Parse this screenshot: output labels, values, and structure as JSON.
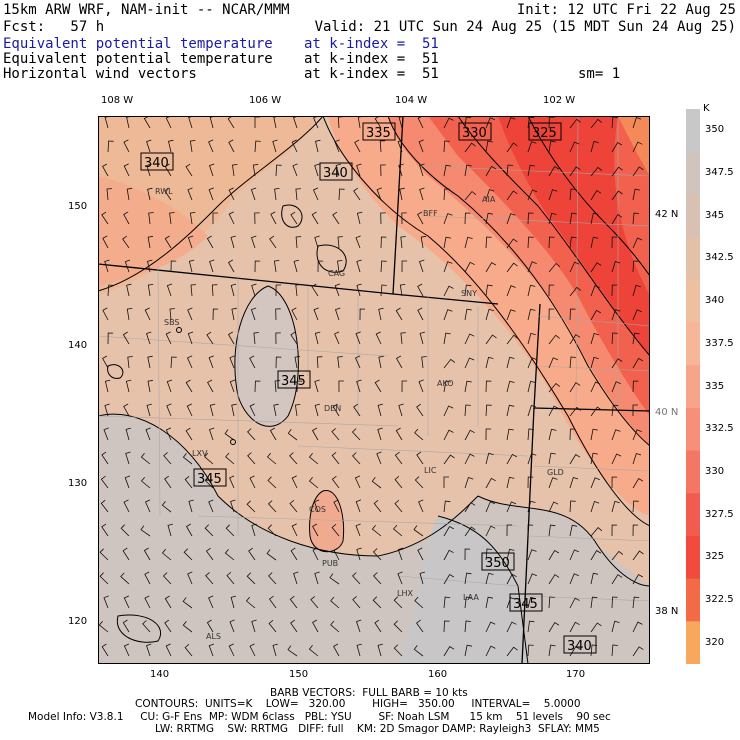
{
  "header": {
    "line1_left": "15km ARW WRF, NAM-init -- NCAR/MMM",
    "line1_right": "Init: 12 UTC Fri 22 Aug 25",
    "line2_left": "Fcst:   57 h",
    "line2_right": "Valid: 21 UTC Sun 24 Aug 25 (15 MDT Sun 24 Aug 25)",
    "fields": [
      {
        "name": "Equivalent potential temperature",
        "level": "at k-index =  51",
        "color": "#1a1aa6"
      },
      {
        "name": "Equivalent potential temperature",
        "level": "at k-index =  51",
        "color": "#000000"
      },
      {
        "name": "Horizontal wind vectors",
        "level": "at k-index =  51",
        "color": "#000000"
      }
    ],
    "smoothing": "sm= 1"
  },
  "map": {
    "top_lon_labels": [
      "108 W",
      "106 W",
      "104 W",
      "102 W"
    ],
    "right_lat_labels": [
      "42 N",
      "40 N",
      "38 N"
    ],
    "left_y_ticks": [
      "150",
      "140",
      "130",
      "120"
    ],
    "bottom_x_ticks": [
      "140",
      "150",
      "160",
      "170"
    ],
    "contour_labels": [
      "340",
      "335",
      "330",
      "325",
      "340",
      "345",
      "345",
      "350",
      "345",
      "340"
    ],
    "stations": [
      "RWL",
      "BFF",
      "AIA",
      "SNY",
      "SBS",
      "AKO",
      "DEN",
      "LXV",
      "LIC",
      "GLD",
      "COS",
      "PUB",
      "LHX",
      "LAA",
      "ALS",
      "CAG"
    ]
  },
  "colorbar": {
    "unit": "K",
    "labels": [
      "350",
      "347.5",
      "345",
      "342.5",
      "340",
      "337.5",
      "335",
      "332.5",
      "330",
      "327.5",
      "325",
      "322.5",
      "320"
    ],
    "colors": [
      "#c8c8c8",
      "#d0c4bf",
      "#d8c0b2",
      "#e4c0a8",
      "#eec0a0",
      "#f6b698",
      "#f7a58a",
      "#f69078",
      "#f47766",
      "#f25c50",
      "#f24a3c",
      "#f36b46",
      "#f8a85c"
    ]
  },
  "footer": {
    "barb": "BARB VECTORS:  FULL BARB = 10 kts",
    "contours": "CONTOURS:  UNITS=K    LOW=   320.00        HIGH=   350.00     INTERVAL=    5.0000",
    "model1": "Model Info: V3.8.1     CU: G-F Ens  MP: WDM 6class   PBL: YSU        SF: Noah LSM      15 km    51 levels    90 sec",
    "model2": "LW: RRTMG    SW: RRTMG   DIFF: full    KM: 2D Smagor DAMP: Rayleigh3  SFLAY: MM5"
  }
}
